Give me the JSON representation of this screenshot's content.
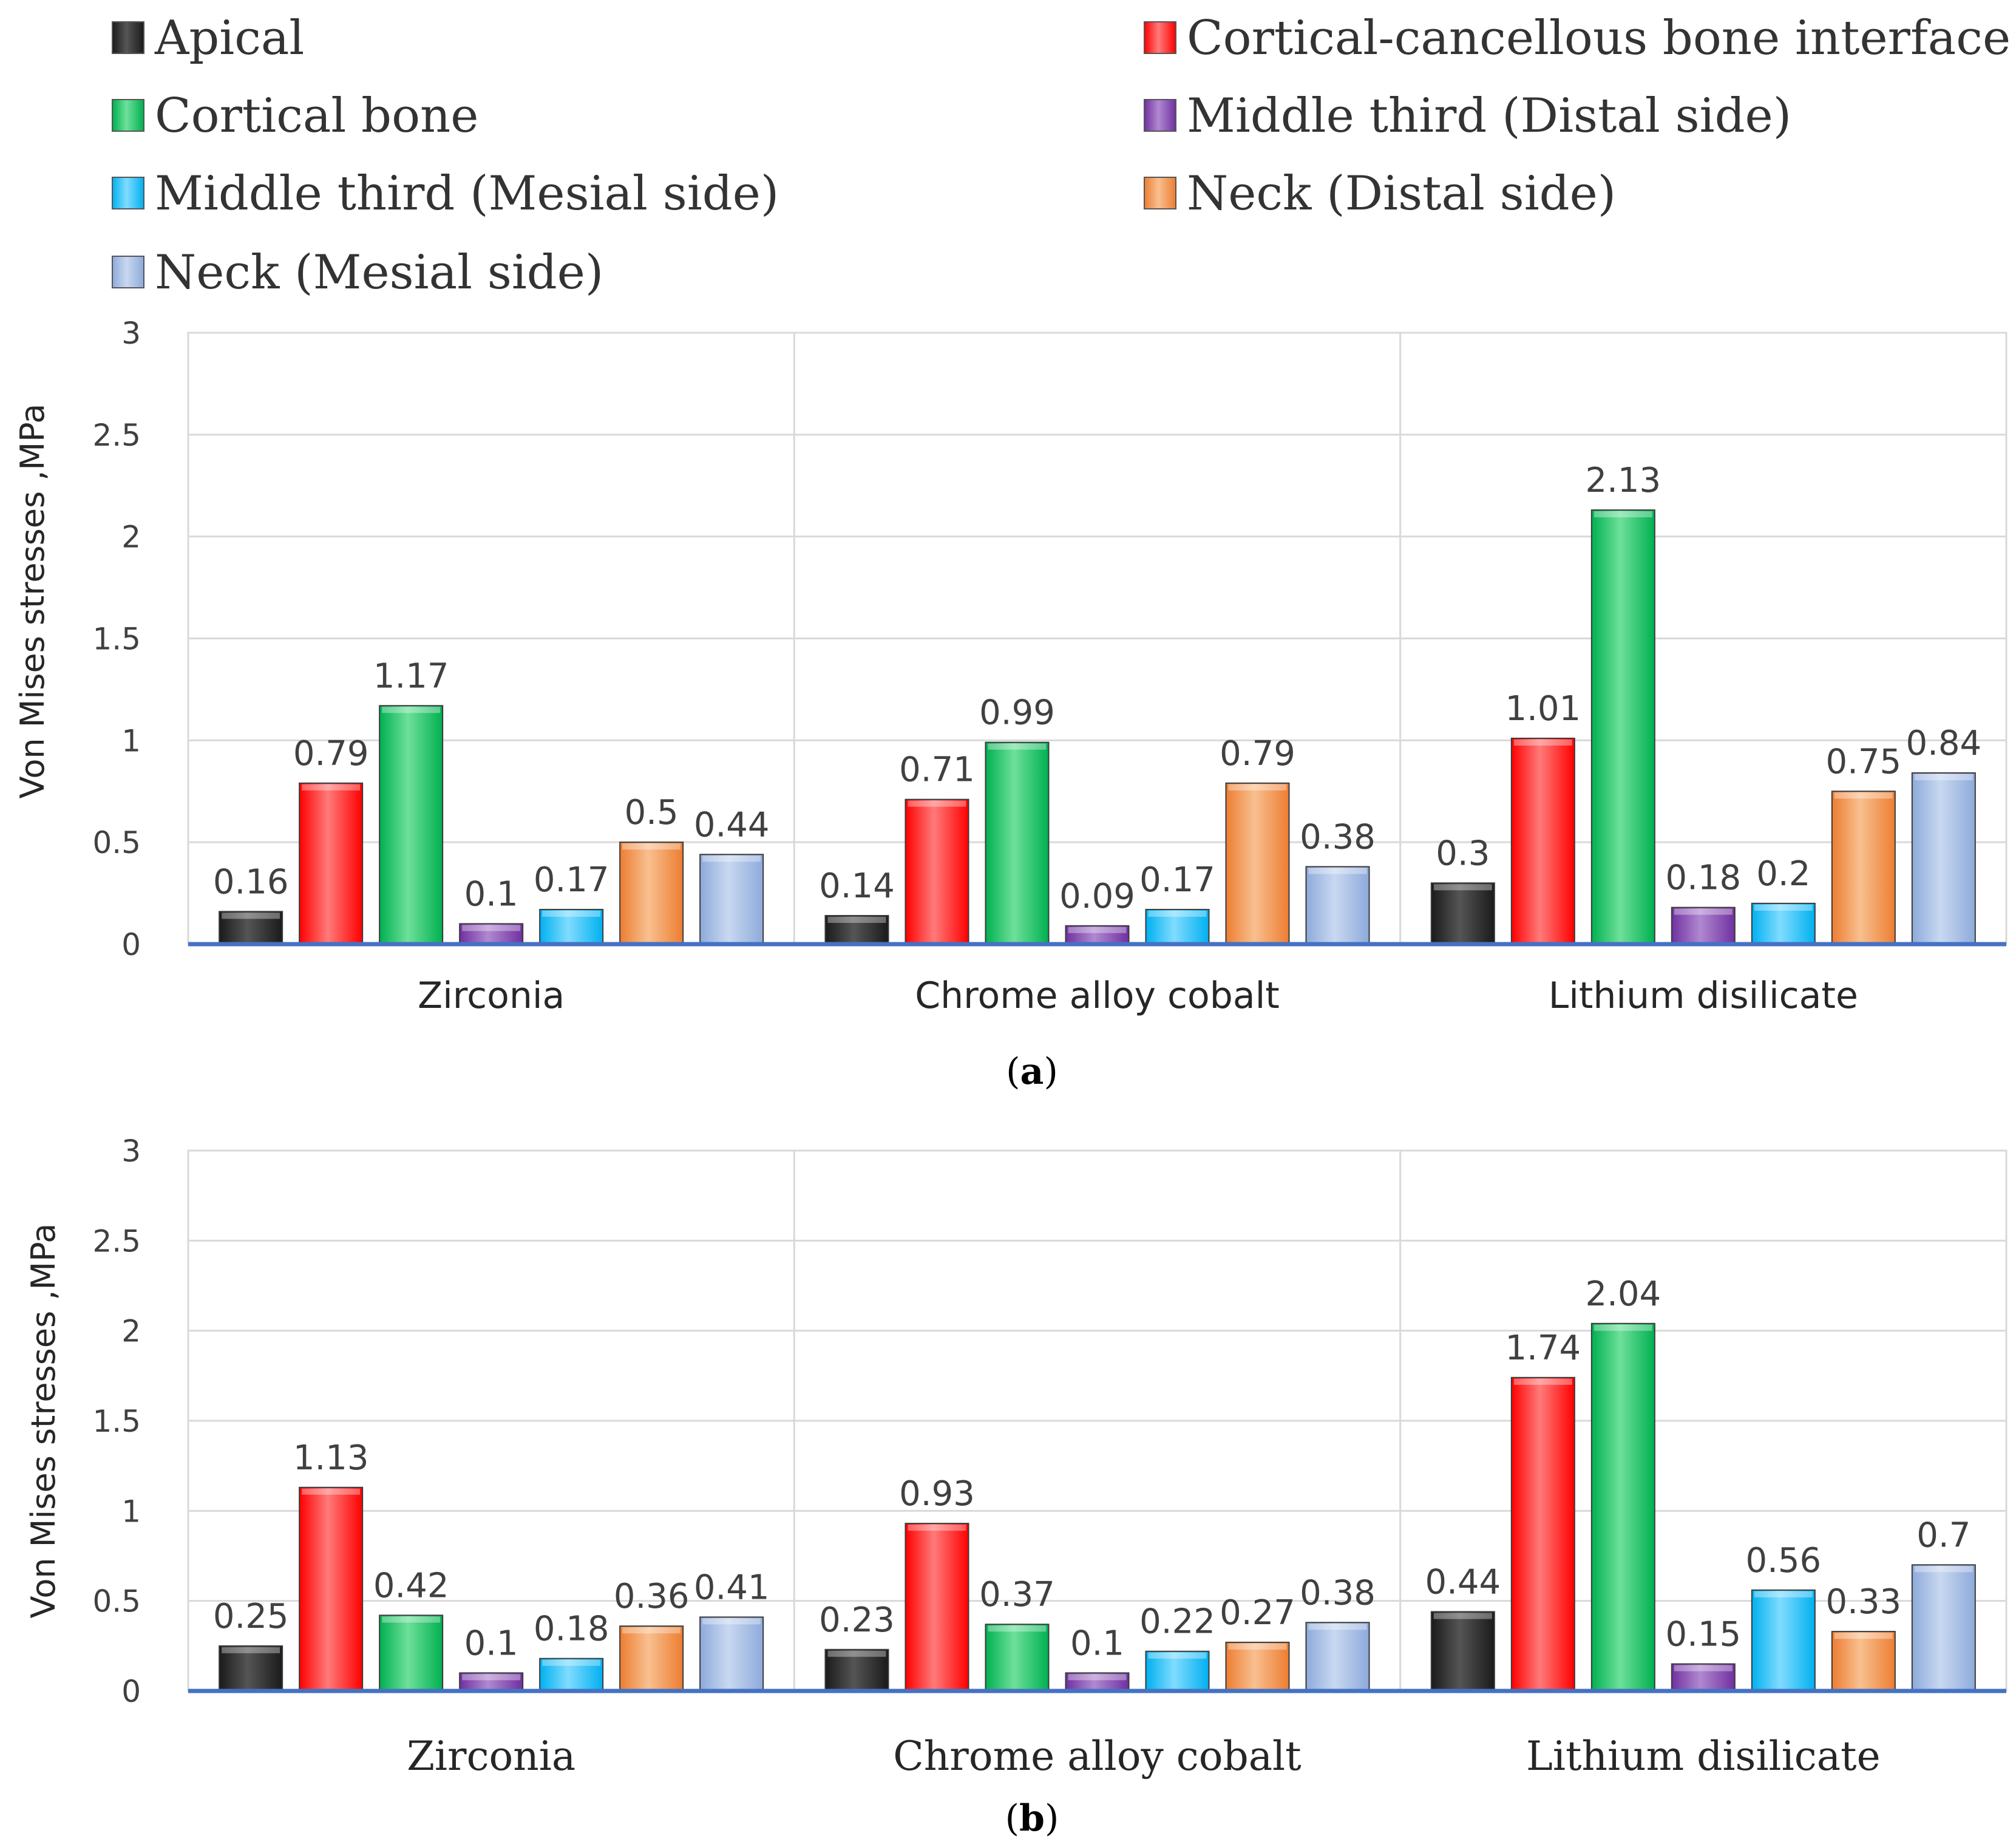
{
  "legend": {
    "entries": [
      {
        "name": "Apical",
        "color": "#1a1a1a",
        "top": "#555555"
      },
      {
        "name": "Cortical-cancellous bone interface",
        "color": "#ff0000",
        "top": "#ff7a7a"
      },
      {
        "name": "Cortical bone",
        "color": "#00b050",
        "top": "#6ee09a"
      },
      {
        "name": "Middle third (Distal side)",
        "color": "#7030a0",
        "top": "#b088d0"
      },
      {
        "name": "Middle third  (Mesial side)",
        "color": "#00b0f0",
        "top": "#80dcff"
      },
      {
        "name": "Neck (Distal side)",
        "color": "#ed7d31",
        "top": "#f8c090"
      },
      {
        "name": "Neck (Mesial side)",
        "color": "#8eaadb",
        "top": "#c8d8f0"
      }
    ]
  },
  "chart_data": [
    {
      "type": "bar",
      "id": "a",
      "caption_open": "(",
      "caption_letter": "a",
      "caption_close": ")",
      "categories": [
        "Zirconia",
        "Chrome alloy cobalt",
        "Lithium disilicate"
      ],
      "ylabel": "Von Mises stresses ,MPa",
      "ylim": [
        0,
        3
      ],
      "yticks": [
        "0",
        "0.5",
        "1",
        "1.5",
        "2",
        "2.5",
        "3"
      ],
      "grid": true,
      "series": [
        {
          "name": "Apical",
          "values": [
            0.16,
            0.14,
            0.3
          ],
          "labels": [
            "0.16",
            "0.14",
            "0.3"
          ]
        },
        {
          "name": "Cortical-cancellous bone interface",
          "values": [
            0.79,
            0.71,
            1.01
          ],
          "labels": [
            "0.79",
            "0.71",
            "1.01"
          ]
        },
        {
          "name": "Cortical bone",
          "values": [
            1.17,
            0.99,
            2.13
          ],
          "labels": [
            "1.17",
            "0.99",
            "2.13"
          ]
        },
        {
          "name": "Middle third (Distal side)",
          "values": [
            0.1,
            0.09,
            0.18
          ],
          "labels": [
            "0.1",
            "0.09",
            "0.18"
          ]
        },
        {
          "name": "Middle third  (Mesial side)",
          "values": [
            0.17,
            0.17,
            0.2
          ],
          "labels": [
            "0.17",
            "0.17",
            "0.2"
          ]
        },
        {
          "name": "Neck (Distal side)",
          "values": [
            0.5,
            0.79,
            0.75
          ],
          "labels": [
            "0.5",
            "0.79",
            "0.75"
          ]
        },
        {
          "name": "Neck (Mesial side)",
          "values": [
            0.44,
            0.38,
            0.84
          ],
          "labels": [
            "0.44",
            "0.38",
            "0.84"
          ]
        }
      ]
    },
    {
      "type": "bar",
      "id": "b",
      "caption_open": "(",
      "caption_letter": "b",
      "caption_close": ")",
      "categories": [
        "Zirconia",
        "Chrome alloy cobalt",
        "Lithium disilicate"
      ],
      "ylabel": "Von Mises stresses ,MPa",
      "ylim": [
        0,
        3
      ],
      "yticks": [
        "0",
        "0.5",
        "1",
        "1.5",
        "2",
        "2.5",
        "3"
      ],
      "grid": true,
      "series": [
        {
          "name": "Apical",
          "values": [
            0.25,
            0.23,
            0.44
          ],
          "labels": [
            "0.25",
            "0.23",
            "0.44"
          ]
        },
        {
          "name": "Cortical-cancellous bone interface",
          "values": [
            1.13,
            0.93,
            1.74
          ],
          "labels": [
            "1.13",
            "0.93",
            "1.74"
          ]
        },
        {
          "name": "Cortical bone",
          "values": [
            0.42,
            0.37,
            2.04
          ],
          "labels": [
            "0.42",
            "0.37",
            "2.04"
          ]
        },
        {
          "name": "Middle third (Distal side)",
          "values": [
            0.1,
            0.1,
            0.15
          ],
          "labels": [
            "0.1",
            "0.1",
            "0.15"
          ]
        },
        {
          "name": "Middle third  (Mesial side)",
          "values": [
            0.18,
            0.22,
            0.56
          ],
          "labels": [
            "0.18",
            "0.22",
            "0.56"
          ]
        },
        {
          "name": "Neck (Distal side)",
          "values": [
            0.36,
            0.27,
            0.33
          ],
          "labels": [
            "0.36",
            "0.27",
            "0.33"
          ]
        },
        {
          "name": "Neck (Mesial side)",
          "values": [
            0.41,
            0.38,
            0.7
          ],
          "labels": [
            "0.41",
            "0.38",
            "0.7"
          ]
        }
      ]
    }
  ]
}
